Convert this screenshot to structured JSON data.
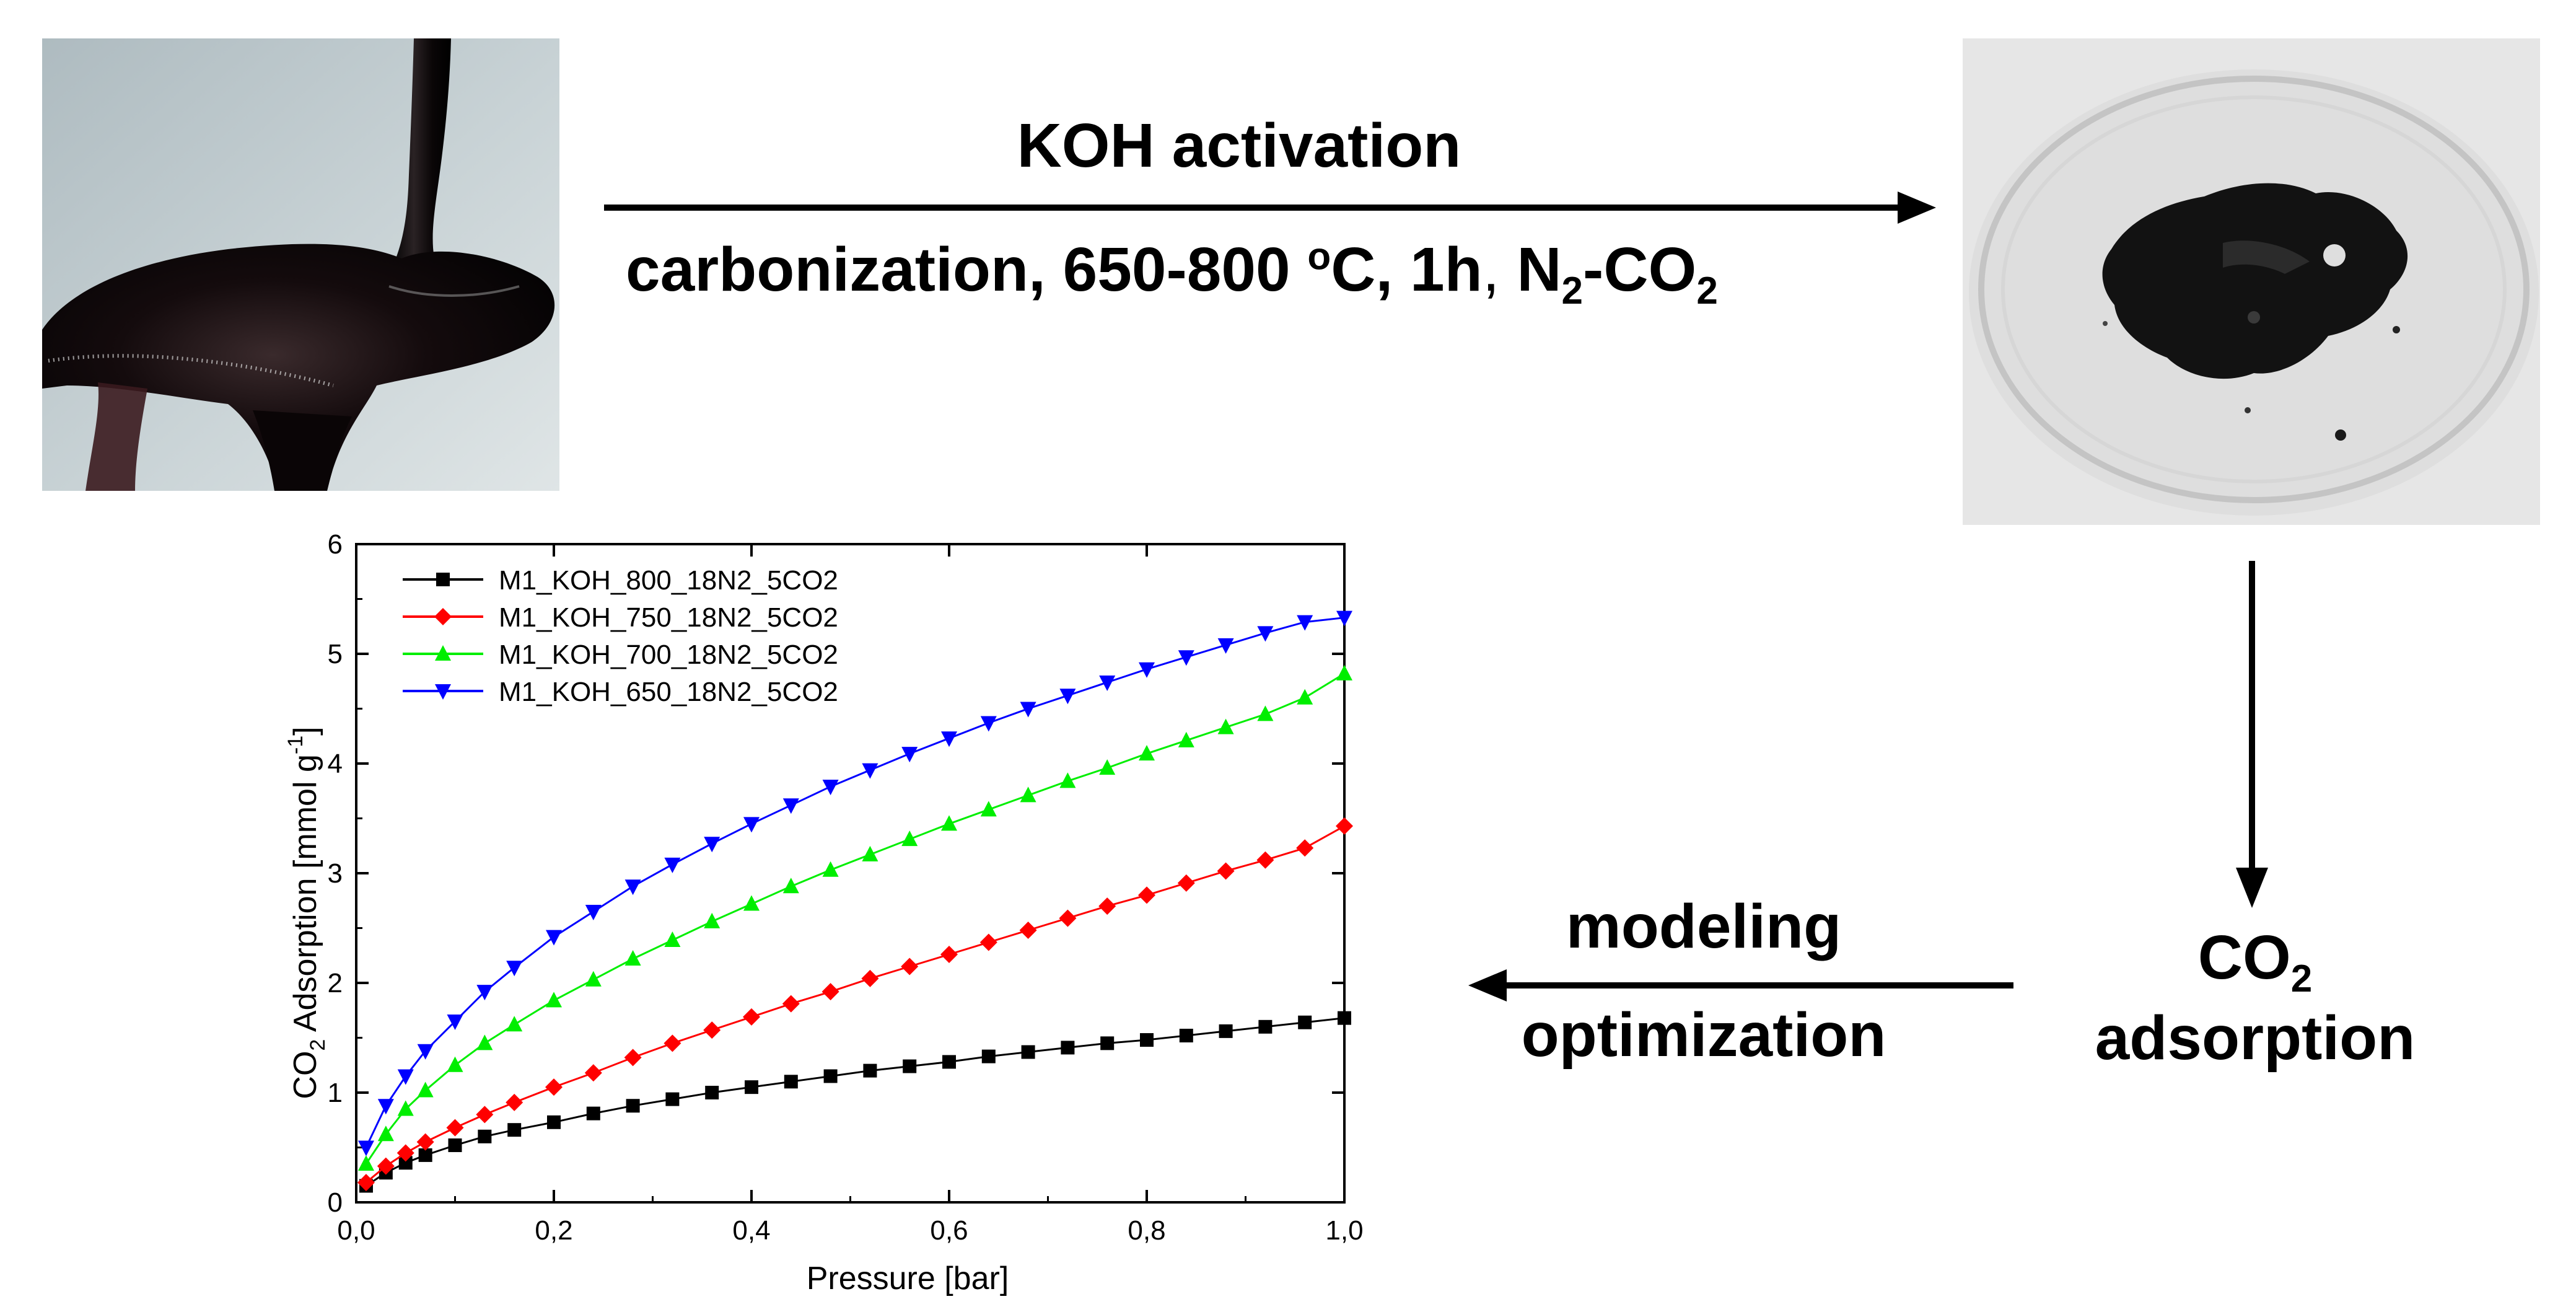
{
  "process": {
    "top_label": "KOH activation",
    "bottom_label_main": "carbonization, 650-800 ",
    "bottom_label_sup": "o",
    "bottom_label_mid": "C, 1h",
    "bottom_label_comma": ",",
    "bottom_label_n": " N",
    "bottom_label_n_sub": "2",
    "bottom_label_dash": "-CO",
    "bottom_label_co_sub": "2"
  },
  "adsorption": {
    "co": "CO",
    "co_sub": "2",
    "word": "adsorption"
  },
  "modeling": {
    "line1": "modeling",
    "line2": "optimization"
  },
  "colors": {
    "black_series": "#000000",
    "red_series": "#ff0000",
    "green_series": "#00ee00",
    "blue_series": "#0000ff",
    "arrow": "#000000"
  },
  "chart_data": {
    "type": "line",
    "title": "",
    "xlabel": "Pressure [bar]",
    "ylabel_parts": {
      "a": "CO",
      "b": "2",
      "c": " Adsorption [mmol g",
      "d": "-1",
      "e": "]"
    },
    "xlim": [
      0,
      1.0
    ],
    "ylim": [
      0,
      6
    ],
    "xticks": [
      "0,0",
      "0,2",
      "0,4",
      "0,6",
      "0,8",
      "1,0"
    ],
    "yticks": [
      "0",
      "1",
      "2",
      "3",
      "4",
      "5",
      "6"
    ],
    "legend_position": "top-left",
    "x": [
      0.01,
      0.03,
      0.05,
      0.07,
      0.1,
      0.13,
      0.16,
      0.2,
      0.24,
      0.28,
      0.32,
      0.36,
      0.4,
      0.44,
      0.48,
      0.52,
      0.56,
      0.6,
      0.64,
      0.68,
      0.72,
      0.76,
      0.8,
      0.84,
      0.88,
      0.92,
      0.96,
      1.0
    ],
    "series": [
      {
        "name": "M1_KOH_800_18N2_5CO2",
        "color": "#000000",
        "marker": "square",
        "values": [
          0.15,
          0.27,
          0.36,
          0.43,
          0.52,
          0.6,
          0.66,
          0.73,
          0.81,
          0.88,
          0.94,
          1.0,
          1.05,
          1.1,
          1.15,
          1.2,
          1.24,
          1.28,
          1.33,
          1.37,
          1.41,
          1.45,
          1.48,
          1.52,
          1.56,
          1.6,
          1.64,
          1.68
        ]
      },
      {
        "name": "M1_KOH_750_18N2_5CO2",
        "color": "#ff0000",
        "marker": "diamond",
        "values": [
          0.18,
          0.33,
          0.45,
          0.55,
          0.68,
          0.8,
          0.91,
          1.05,
          1.18,
          1.32,
          1.45,
          1.57,
          1.69,
          1.81,
          1.92,
          2.04,
          2.15,
          2.26,
          2.37,
          2.48,
          2.59,
          2.7,
          2.8,
          2.91,
          3.02,
          3.12,
          3.23,
          3.43
        ]
      },
      {
        "name": "M1_KOH_700_18N2_5CO2",
        "color": "#00ee00",
        "marker": "triangle-up",
        "values": [
          0.35,
          0.62,
          0.85,
          1.02,
          1.25,
          1.45,
          1.62,
          1.84,
          2.03,
          2.22,
          2.39,
          2.56,
          2.72,
          2.88,
          3.03,
          3.17,
          3.31,
          3.45,
          3.58,
          3.71,
          3.84,
          3.96,
          4.09,
          4.21,
          4.33,
          4.45,
          4.6,
          4.82
        ]
      },
      {
        "name": "M1_KOH_650_18N2_5CO2",
        "color": "#0000ff",
        "marker": "triangle-down",
        "values": [
          0.5,
          0.88,
          1.15,
          1.38,
          1.65,
          1.92,
          2.14,
          2.42,
          2.65,
          2.88,
          3.08,
          3.27,
          3.45,
          3.62,
          3.79,
          3.94,
          4.09,
          4.23,
          4.37,
          4.5,
          4.62,
          4.74,
          4.86,
          4.97,
          5.08,
          5.19,
          5.29,
          5.33
        ]
      }
    ]
  }
}
